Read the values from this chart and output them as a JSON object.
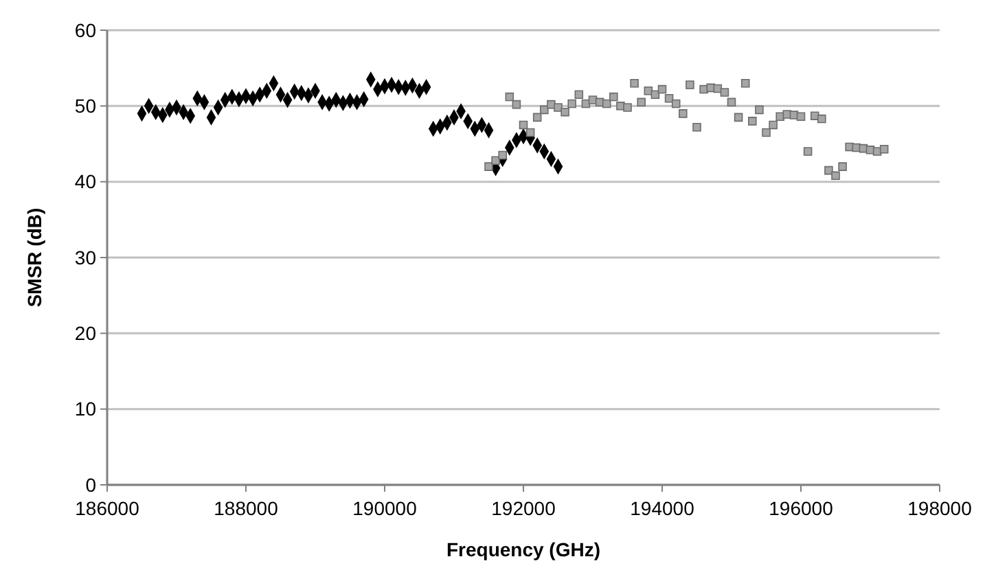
{
  "chart_data": {
    "type": "scatter",
    "xlabel": "Frequency (GHz)",
    "ylabel": "SMSR (dB)",
    "xlim": [
      186000,
      198000
    ],
    "xticks": [
      186000,
      188000,
      190000,
      192000,
      194000,
      196000,
      198000
    ],
    "ylim": [
      0,
      60
    ],
    "yticks": [
      0,
      10,
      20,
      30,
      40,
      50,
      60
    ],
    "grid": "y",
    "series": [
      {
        "color": "#000000",
        "marker": "diamond",
        "x": [
          186500,
          186600,
          186700,
          186800,
          186900,
          187000,
          187100,
          187200,
          187300,
          187400,
          187500,
          187600,
          187700,
          187800,
          187900,
          188000,
          188100,
          188200,
          188300,
          188400,
          188500,
          188600,
          188700,
          188800,
          188900,
          189000,
          189100,
          189200,
          189300,
          189400,
          189500,
          189600,
          189700,
          189800,
          189900,
          190000,
          190100,
          190200,
          190300,
          190400,
          190500,
          190600,
          190700,
          190800,
          190900,
          191000,
          191100,
          191200,
          191300,
          191400,
          191500,
          191600,
          191700,
          191800,
          191900,
          192000,
          192100,
          192200,
          192300,
          192400,
          192500
        ],
        "values": [
          49,
          50,
          49.2,
          48.8,
          49.5,
          49.8,
          49.2,
          48.7,
          51,
          50.5,
          48.5,
          49.8,
          50.8,
          51.2,
          50.9,
          51.3,
          51,
          51.5,
          52,
          53,
          51.5,
          50.8,
          51.9,
          51.7,
          51.4,
          52,
          50.5,
          50.3,
          50.8,
          50.4,
          50.7,
          50.5,
          50.9,
          53.5,
          52.2,
          52.6,
          52.8,
          52.5,
          52.4,
          52.7,
          52,
          52.5,
          47,
          47.3,
          47.8,
          48.5,
          49.3,
          48,
          47,
          47.5,
          46.8,
          41.8,
          43,
          44.5,
          45.5,
          46,
          45.8,
          44.8,
          44,
          43,
          42
        ]
      },
      {
        "color": "#a6a6a6",
        "marker": "square",
        "x": [
          191500,
          191600,
          191700,
          191800,
          191900,
          192000,
          192100,
          192200,
          192300,
          192400,
          192500,
          192600,
          192700,
          192800,
          192900,
          193000,
          193100,
          193200,
          193300,
          193400,
          193500,
          193600,
          193700,
          193800,
          193900,
          194000,
          194100,
          194200,
          194300,
          194400,
          194500,
          194600,
          194700,
          194800,
          194900,
          195000,
          195100,
          195200,
          195300,
          195400,
          195500,
          195600,
          195700,
          195800,
          195900,
          196000,
          196100,
          196200,
          196300,
          196400,
          196500,
          196600,
          196700,
          196800,
          196900,
          197000,
          197100,
          197200
        ],
        "values": [
          42,
          42.8,
          43.5,
          51.2,
          50.2,
          47.5,
          46.5,
          48.5,
          49.5,
          50.2,
          49.8,
          49.2,
          50.3,
          51.5,
          50.3,
          50.8,
          50.5,
          50.3,
          51.2,
          50,
          49.8,
          53,
          50.5,
          52,
          51.5,
          52.2,
          51,
          50.3,
          49,
          52.8,
          47.2,
          52.2,
          52.4,
          52.3,
          51.8,
          50.5,
          48.5,
          53,
          48,
          49.5,
          46.5,
          47.5,
          48.6,
          48.9,
          48.8,
          48.6,
          44,
          48.7,
          48.3,
          41.5,
          40.8,
          42,
          44.6,
          44.5,
          44.4,
          44.2,
          44,
          44.3
        ]
      }
    ]
  }
}
